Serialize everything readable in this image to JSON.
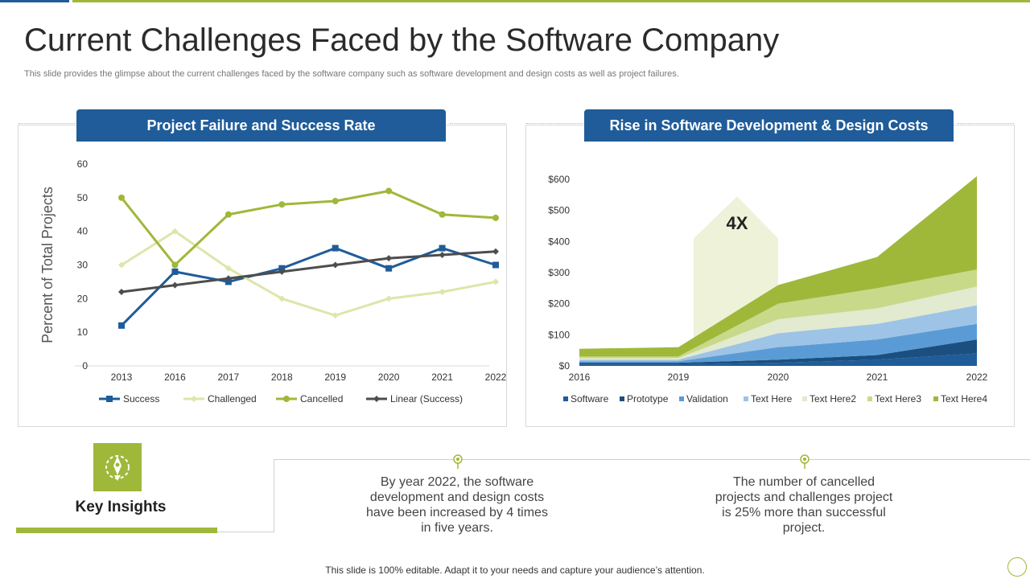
{
  "page": {
    "title": "Current Challenges Faced by the Software Company",
    "subtitle": "This slide provides the glimpse about the current challenges faced by the software company such as software development and design costs as well as project failures.",
    "footer": "This slide is 100% editable. Adapt it to your needs and capture your audience’s attention."
  },
  "insights": {
    "title": "Key Insights",
    "items": [
      "By year 2022, the software development and design costs have been increased by 4 times in five years.",
      "The number of cancelled projects and challenges project is 25% more than successful project."
    ]
  },
  "colors": {
    "blue": "#1f5c99",
    "green": "#9fb83a",
    "light_green": "#dde6a9",
    "gray": "#4d4d4d"
  },
  "chart_data": [
    {
      "type": "line",
      "title": "Project Failure and Success Rate",
      "xlabel": "",
      "ylabel": "Percent of Total Projects",
      "categories": [
        "2013",
        "2016",
        "2017",
        "2018",
        "2019",
        "2020",
        "2021",
        "2022"
      ],
      "ylim": [
        0,
        60
      ],
      "yticks": [
        0,
        10,
        20,
        30,
        40,
        50,
        60
      ],
      "legend": "bottom",
      "series": [
        {
          "name": "Success",
          "color": "#1f5c99",
          "marker": "square",
          "values": [
            12,
            28,
            25,
            29,
            35,
            29,
            35,
            30
          ]
        },
        {
          "name": "Challenged",
          "color": "#dde6a9",
          "marker": "diamond",
          "values": [
            30,
            40,
            29,
            20,
            15,
            20,
            22,
            25
          ]
        },
        {
          "name": "Cancelled",
          "color": "#9fb83a",
          "marker": "circle",
          "values": [
            50,
            30,
            45,
            48,
            49,
            52,
            45,
            44
          ]
        },
        {
          "name": "Linear (Success)",
          "color": "#4d4d4d",
          "marker": "diamond",
          "values": [
            22,
            24,
            26,
            28,
            30,
            32,
            33,
            34
          ]
        }
      ]
    },
    {
      "type": "area",
      "stacked": true,
      "title": "Rise in Software Development & Design Costs",
      "categories": [
        "2016",
        "2019",
        "2020",
        "2021",
        "2022"
      ],
      "ylim": [
        0,
        600
      ],
      "yticks": [
        0,
        100,
        200,
        300,
        400,
        500,
        600
      ],
      "ytick_labels": [
        "$0",
        "$100",
        "$200",
        "$300",
        "$400",
        "$500",
        "$600"
      ],
      "legend": "bottom",
      "annotation": "4X",
      "series": [
        {
          "name": "Software",
          "color": "#1f5c99",
          "values": [
            5,
            5,
            10,
            20,
            40
          ]
        },
        {
          "name": "Prototype",
          "color": "#1b4f80",
          "values": [
            5,
            5,
            10,
            15,
            45
          ]
        },
        {
          "name": "Validation",
          "color": "#5b9bd5",
          "values": [
            5,
            5,
            40,
            50,
            50
          ]
        },
        {
          "name": "Text Here",
          "color": "#9dc3e6",
          "values": [
            5,
            5,
            45,
            50,
            60
          ]
        },
        {
          "name": "Text Here2",
          "color": "#e2ead0",
          "values": [
            5,
            5,
            45,
            50,
            60
          ]
        },
        {
          "name": "Text Here3",
          "color": "#c9d98a",
          "values": [
            5,
            5,
            50,
            65,
            55
          ]
        },
        {
          "name": "Text Here4",
          "color": "#9fb83a",
          "values": [
            25,
            30,
            60,
            100,
            300
          ]
        }
      ]
    }
  ]
}
